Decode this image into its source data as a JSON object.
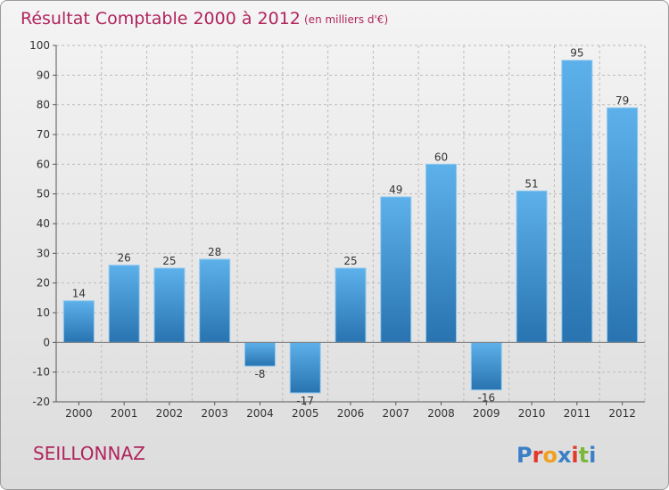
{
  "title": "Résultat Comptable 2000 à 2012",
  "subtitle": "(en milliers d'€)",
  "commune": "SEILLONNAZ",
  "logo": {
    "text": "Proxiti",
    "letters": [
      "P",
      "r",
      "o",
      "x",
      "i",
      "t",
      "i"
    ],
    "colors": [
      "#3a7fc8",
      "#e03a2a",
      "#f0a020",
      "#3a7fc8",
      "#e03a2a",
      "#79b83a",
      "#3a7fc8"
    ]
  },
  "colors": {
    "bar_light": "#5db1ea",
    "bar_dark": "#2873b0",
    "axis": "#555555",
    "grid": "#bbbbbb"
  },
  "chart_data": {
    "type": "bar",
    "title": "Résultat Comptable 2000 à 2012",
    "subtitle": "(en milliers d'€)",
    "xlabel": "",
    "ylabel": "",
    "categories": [
      "2000",
      "2001",
      "2002",
      "2003",
      "2004",
      "2005",
      "2006",
      "2007",
      "2008",
      "2009",
      "2010",
      "2011",
      "2012"
    ],
    "values": [
      14,
      26,
      25,
      28,
      -8,
      -17,
      25,
      49,
      60,
      -16,
      51,
      95,
      79
    ],
    "ylim": [
      -20,
      100
    ],
    "yticks": [
      100,
      90,
      80,
      70,
      60,
      50,
      40,
      30,
      20,
      10,
      0,
      -10,
      -20
    ],
    "grid": "dashed-horizontal"
  }
}
